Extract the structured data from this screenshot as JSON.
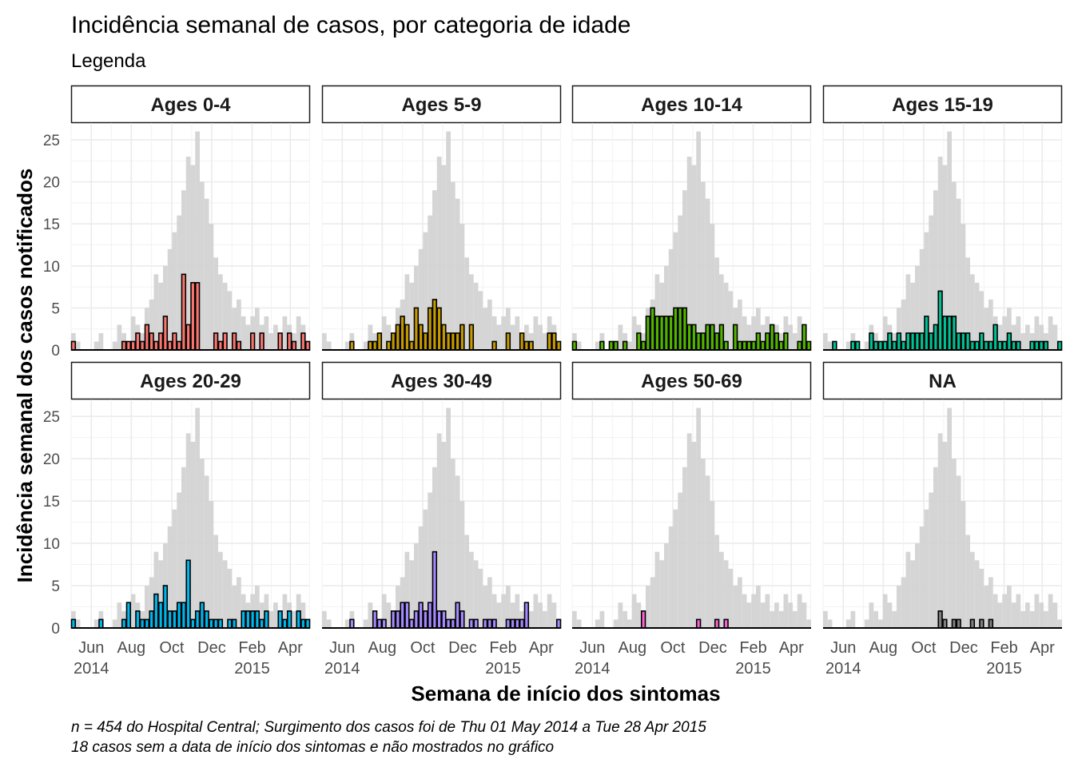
{
  "chart_data": {
    "type": "bar",
    "title": "Incidência semanal de casos, por categoria de idade",
    "subtitle": "Legenda",
    "xlabel": "Semana de início dos sintomas",
    "ylabel": "Incidência semanal dos casos notificados",
    "caption": [
      "n = 454 do Hospital Central; Surgimento dos casos foi de Thu 01 May 2014 a Tue 28 Apr 2015",
      "18 casos sem a data de início dos sintomas e não mostrados no gráfico"
    ],
    "x_unit": "weeks since 2014-05-01 (52 weekly bins)",
    "x_ticks": [
      {
        "week": 4.4,
        "label": "Jun",
        "sublabel": "2014"
      },
      {
        "week": 13.1,
        "label": "Aug",
        "sublabel": ""
      },
      {
        "week": 21.9,
        "label": "Oct",
        "sublabel": ""
      },
      {
        "week": 30.6,
        "label": "Dec",
        "sublabel": ""
      },
      {
        "week": 39.4,
        "label": "Feb",
        "sublabel": "2015"
      },
      {
        "week": 47.7,
        "label": "Apr",
        "sublabel": ""
      }
    ],
    "x_ticks_note": "tick positions in weeks from 2014-05-01",
    "ylim": [
      0,
      27
    ],
    "y_ticks": [
      0,
      5,
      10,
      15,
      20,
      25
    ],
    "grid": true,
    "facets": 4,
    "background_series": {
      "values": [
        2,
        1,
        0,
        0,
        0,
        1,
        2,
        0,
        0,
        1,
        3,
        2,
        1,
        4,
        3,
        2,
        5,
        6,
        9,
        8,
        10,
        12,
        14,
        16,
        19,
        23,
        22,
        26,
        20,
        18,
        15,
        11,
        9,
        8,
        7,
        5,
        6,
        4,
        3,
        4,
        5,
        3,
        4,
        2,
        3,
        2,
        4,
        3,
        2,
        4,
        3,
        1
      ],
      "color": "#d3d3d3"
    },
    "series": [
      {
        "name": "Ages 0-4",
        "color": "#F8766D",
        "values": [
          1,
          0,
          0,
          0,
          0,
          0,
          0,
          0,
          0,
          0,
          0,
          1,
          1,
          1,
          2,
          1,
          3,
          2,
          1,
          2,
          4,
          1,
          2,
          1,
          9,
          3,
          8,
          8,
          0,
          0,
          0,
          2,
          1,
          2,
          0,
          2,
          1,
          0,
          0,
          2,
          0,
          2,
          0,
          0,
          0,
          2,
          0,
          2,
          1,
          0,
          2,
          1
        ]
      },
      {
        "name": "Ages 5-9",
        "color": "#C49A00",
        "values": [
          0,
          0,
          0,
          0,
          0,
          0,
          1,
          0,
          0,
          0,
          1,
          1,
          2,
          0,
          1,
          2,
          3,
          4,
          3,
          1,
          5,
          3,
          2,
          5,
          6,
          5,
          3,
          2,
          2,
          2,
          3,
          0,
          3,
          0,
          0,
          0,
          0,
          1,
          0,
          0,
          2,
          0,
          0,
          2,
          1,
          1,
          0,
          0,
          0,
          2,
          2,
          1
        ]
      },
      {
        "name": "Ages 10-14",
        "color": "#53B400",
        "values": [
          1,
          0,
          0,
          0,
          0,
          0,
          1,
          0,
          1,
          1,
          0,
          1,
          0,
          0,
          2,
          1,
          4,
          5,
          4,
          4,
          4,
          4,
          5,
          5,
          5,
          3,
          3,
          2,
          2,
          3,
          3,
          2,
          3,
          1,
          0,
          3,
          1,
          1,
          1,
          1,
          2,
          1,
          2,
          3,
          2,
          1,
          2,
          0,
          0,
          1,
          3,
          1
        ]
      },
      {
        "name": "Ages 15-19",
        "color": "#00C094",
        "values": [
          0,
          0,
          1,
          0,
          0,
          0,
          1,
          1,
          0,
          0,
          2,
          1,
          1,
          1,
          2,
          1,
          2,
          1,
          2,
          2,
          2,
          2,
          4,
          2,
          3,
          7,
          4,
          4,
          4,
          2,
          2,
          2,
          1,
          1,
          2,
          1,
          1,
          3,
          1,
          1,
          2,
          1,
          1,
          0,
          0,
          1,
          1,
          1,
          1,
          0,
          0,
          1
        ]
      },
      {
        "name": "Ages 20-29",
        "color": "#00B6EB",
        "values": [
          1,
          0,
          0,
          0,
          0,
          0,
          1,
          0,
          0,
          0,
          0,
          1,
          3,
          0,
          2,
          1,
          1,
          2,
          4,
          3,
          5,
          2,
          2,
          3,
          3,
          8,
          1,
          2,
          3,
          2,
          1,
          1,
          1,
          0,
          1,
          1,
          0,
          2,
          2,
          2,
          2,
          1,
          2,
          0,
          0,
          2,
          1,
          2,
          0,
          2,
          1,
          1
        ]
      },
      {
        "name": "Ages 30-49",
        "color": "#A58AFF",
        "values": [
          0,
          0,
          0,
          0,
          0,
          0,
          1,
          0,
          0,
          0,
          0,
          2,
          1,
          1,
          0,
          2,
          2,
          3,
          3,
          1,
          2,
          3,
          2,
          3,
          9,
          2,
          2,
          1,
          1,
          3,
          2,
          0,
          1,
          1,
          0,
          1,
          1,
          1,
          0,
          0,
          1,
          1,
          1,
          1,
          3,
          0,
          0,
          0,
          0,
          0,
          0,
          1
        ]
      },
      {
        "name": "Ages 50-69",
        "color": "#FB61D7",
        "values": [
          0,
          0,
          0,
          0,
          0,
          0,
          0,
          0,
          0,
          0,
          0,
          0,
          0,
          0,
          0,
          2,
          0,
          0,
          0,
          0,
          0,
          0,
          0,
          0,
          0,
          0,
          0,
          1,
          0,
          0,
          0,
          1,
          0,
          1,
          0,
          0,
          0,
          0,
          0,
          0,
          0,
          0,
          0,
          0,
          0,
          0,
          0,
          0,
          0,
          0,
          0,
          0
        ]
      },
      {
        "name": "NA",
        "color": "#7f7f7f",
        "values": [
          0,
          0,
          0,
          0,
          0,
          0,
          0,
          0,
          0,
          0,
          0,
          0,
          0,
          0,
          0,
          0,
          0,
          0,
          0,
          0,
          0,
          0,
          0,
          0,
          0,
          2,
          1,
          0,
          1,
          1,
          0,
          0,
          1,
          0,
          1,
          0,
          1,
          0,
          0,
          0,
          0,
          0,
          0,
          0,
          0,
          0,
          0,
          0,
          0,
          0,
          0,
          0
        ]
      }
    ]
  }
}
